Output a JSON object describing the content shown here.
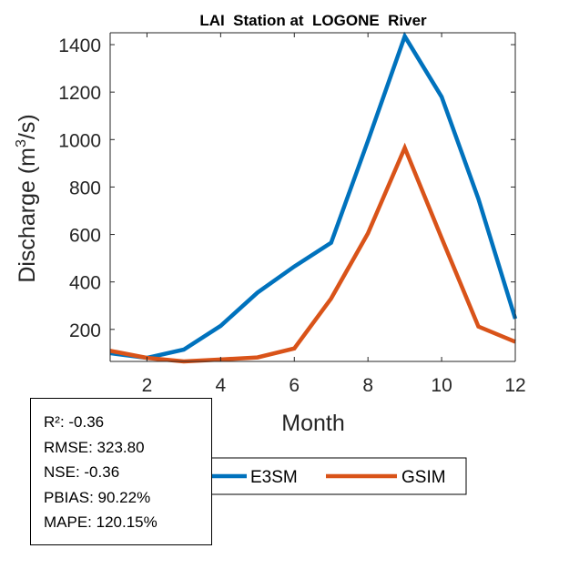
{
  "chart_data": {
    "type": "line",
    "title": "LAI  Station at  LOGONE  River",
    "xlabel": "Month",
    "ylabel": "Discharge (m",
    "ylabel_superscript": "3",
    "ylabel_suffix": "/s)",
    "xlim": [
      1,
      12
    ],
    "ylim": [
      65,
      1450
    ],
    "xticks": [
      2,
      4,
      6,
      8,
      10,
      12
    ],
    "yticks": [
      200,
      400,
      600,
      800,
      1000,
      1200,
      1400
    ],
    "x": [
      1,
      2,
      3,
      4,
      5,
      6,
      7,
      8,
      9,
      10,
      11,
      12
    ],
    "series": [
      {
        "name": "E3SM",
        "color": "#0072BD",
        "values": [
          100,
          80,
          115,
          215,
          355,
          465,
          565,
          995,
          1435,
          1180,
          750,
          245
        ]
      },
      {
        "name": "GSIM",
        "color": "#D95319",
        "values": [
          110,
          80,
          65,
          73,
          82,
          120,
          330,
          605,
          965,
          585,
          212,
          148
        ]
      }
    ],
    "legend_position": "bottom-right, outside below axes",
    "stats": [
      "R²: -0.36",
      "RMSE: 323.80",
      "NSE: -0.36",
      "PBIAS: 90.22%",
      "MAPE: 120.15%"
    ]
  }
}
